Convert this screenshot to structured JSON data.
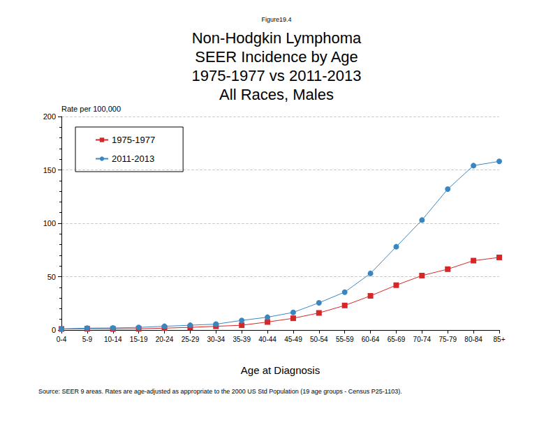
{
  "chart_data": {
    "type": "line",
    "figure_label": "Figure19.4",
    "title": "Non-Hodgkin Lymphoma\nSEER Incidence by Age\n1975-1977 vs 2011-2013\nAll Races, Males",
    "x_label": "Age at Diagnosis",
    "y_label": "Rate per 100,000",
    "note": "Source: SEER 9 areas. Rates are age-adjusted as appropriate to the 2000 US Std Population (19 age groups - Census P25-1103).",
    "categories": [
      "0-4",
      "5-9",
      "10-14",
      "15-19",
      "20-24",
      "25-29",
      "30-34",
      "35-39",
      "40-44",
      "45-49",
      "50-54",
      "55-59",
      "60-64",
      "65-69",
      "70-74",
      "75-79",
      "80-84",
      "85+"
    ],
    "series": [
      {
        "name": "1975-1977",
        "color": "#d62728",
        "marker": "square",
        "line_style": "solid",
        "values": [
          1.0,
          1.2,
          1.0,
          1.2,
          1.8,
          2.5,
          3.5,
          4.5,
          7.5,
          11,
          16,
          23,
          32,
          42,
          51,
          57,
          65,
          68
        ]
      },
      {
        "name": "2011-2013",
        "color": "#3a87c0",
        "marker": "circle",
        "line_style": "solid",
        "values": [
          1.0,
          1.8,
          2.0,
          2.5,
          3.5,
          4.5,
          5.5,
          9,
          12,
          16.5,
          25.5,
          35.5,
          53,
          78,
          103,
          132,
          154,
          158
        ]
      }
    ],
    "ylim": [
      0,
      200
    ],
    "yticks": [
      0,
      50,
      100,
      150,
      200
    ],
    "grid": true,
    "legend": "upper left"
  }
}
